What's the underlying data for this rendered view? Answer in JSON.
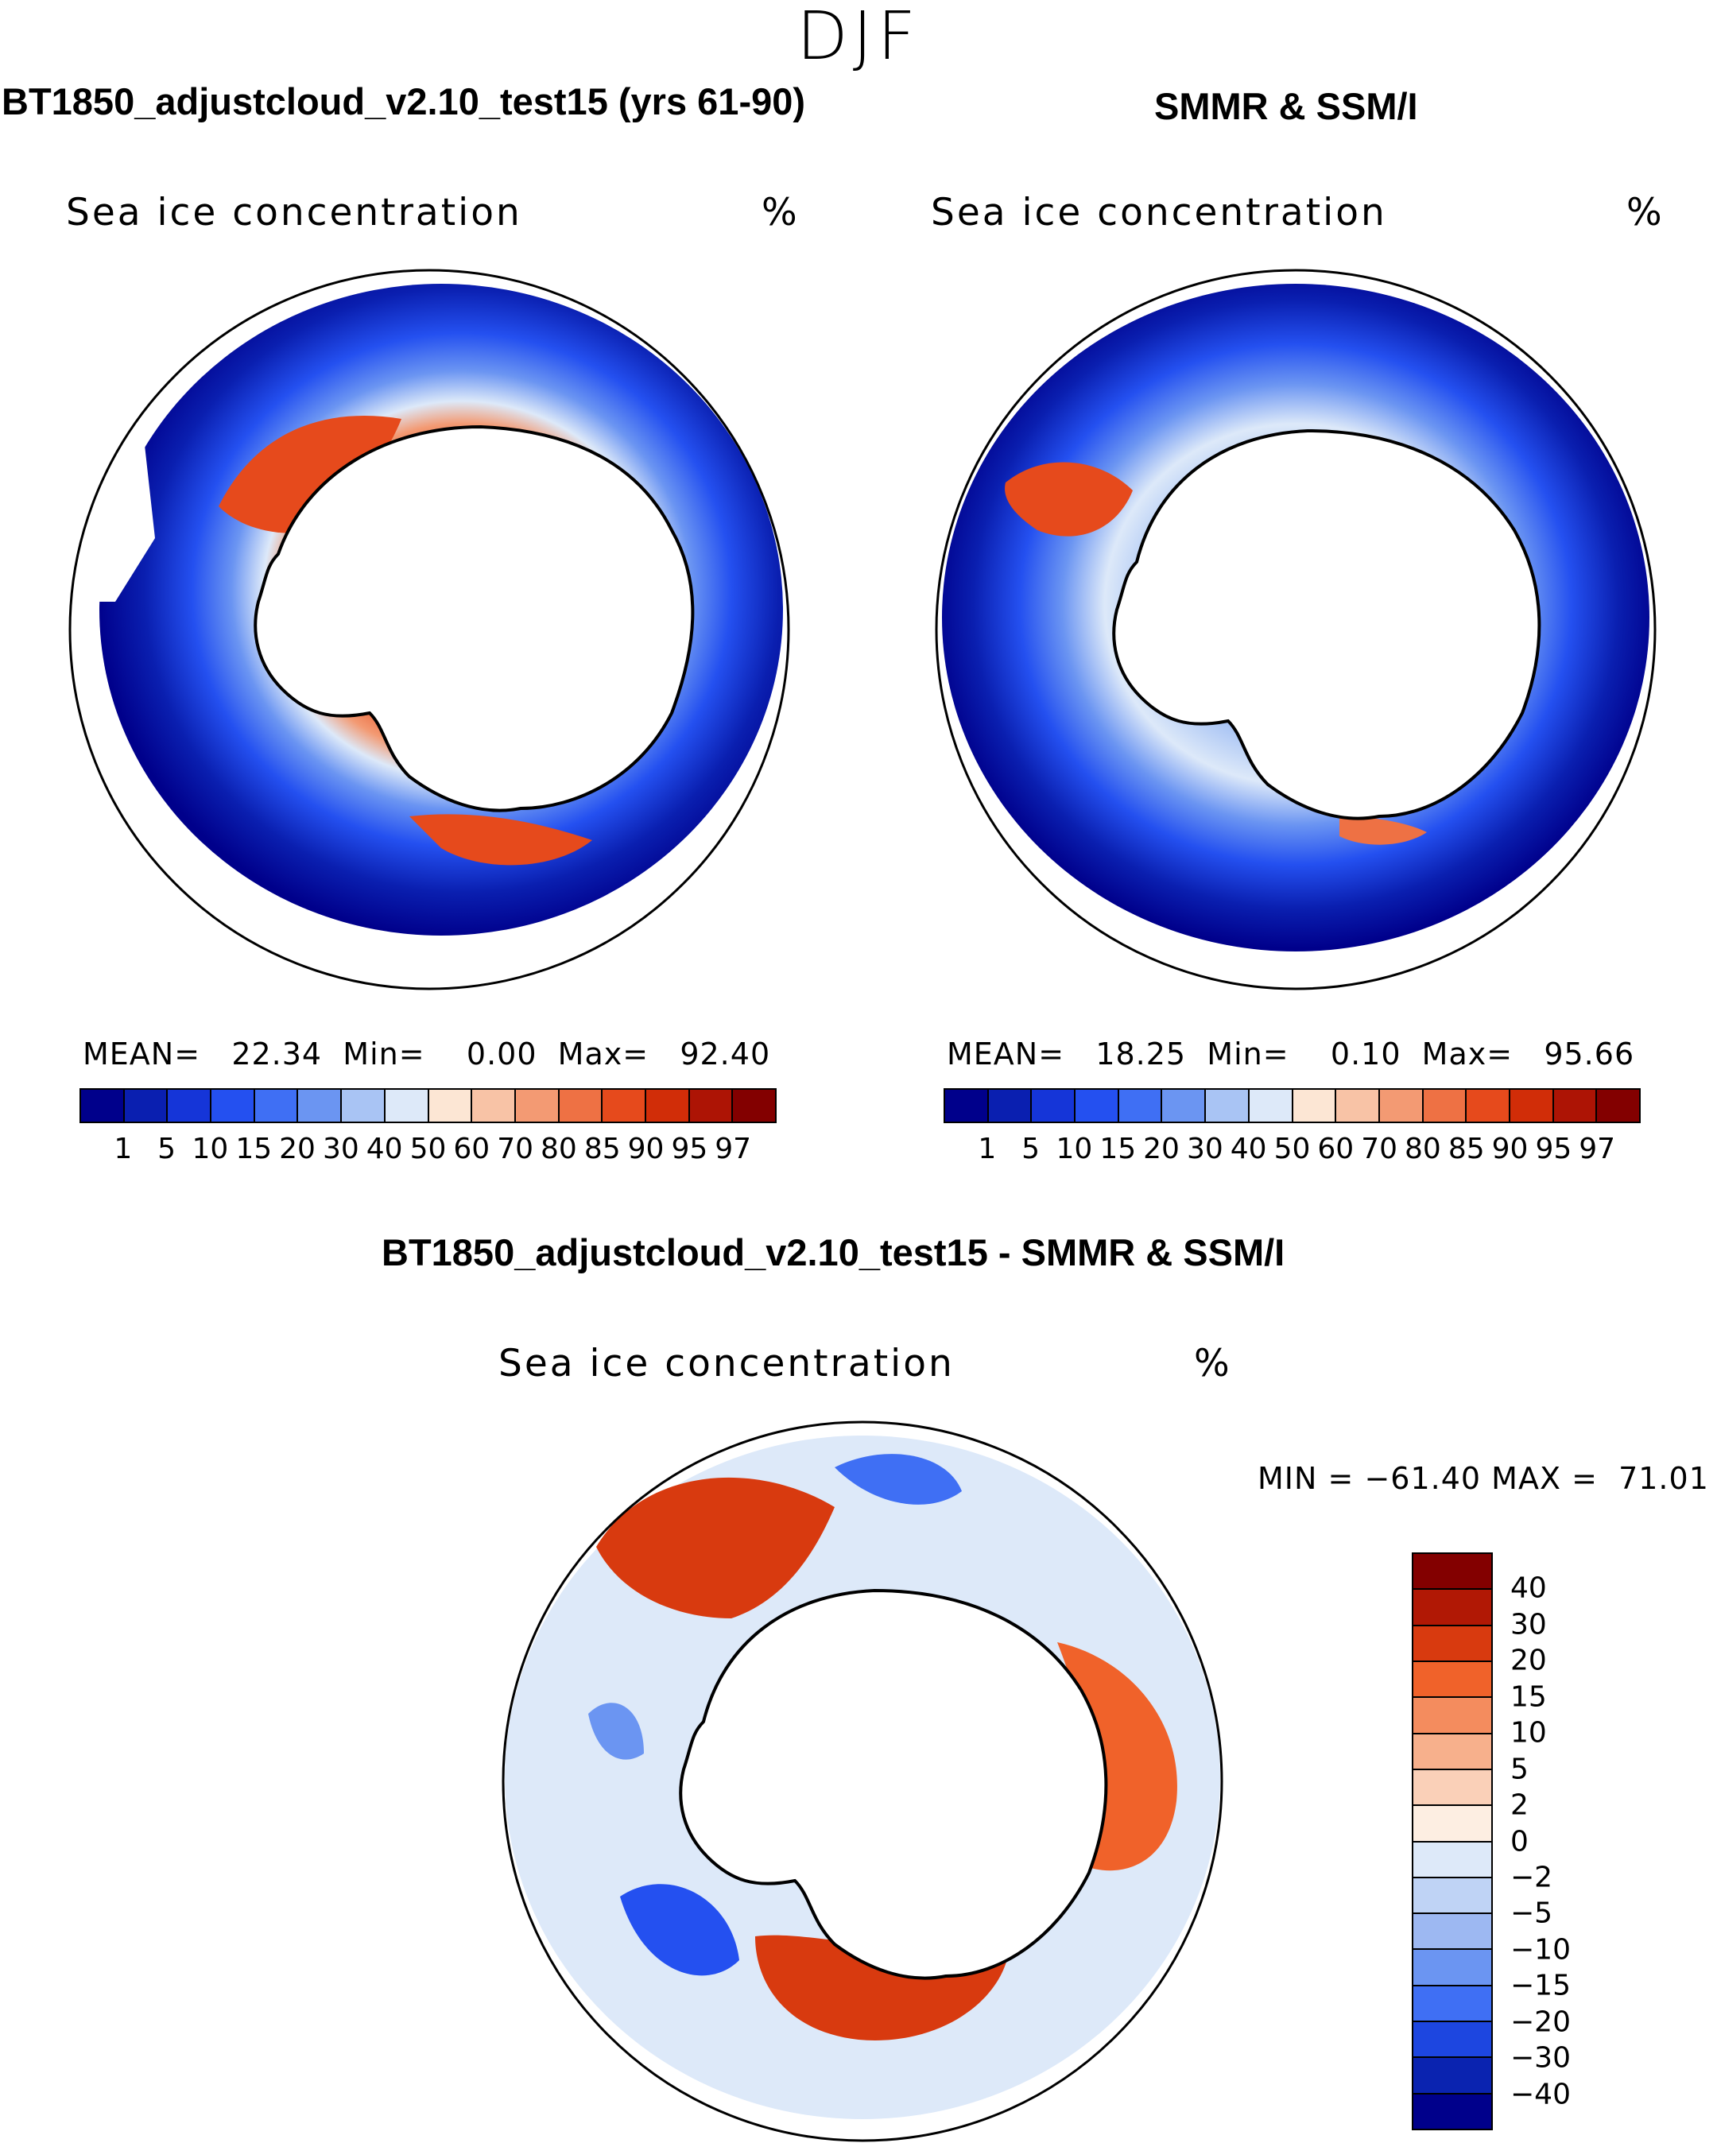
{
  "season": "DJF",
  "panels": {
    "model": {
      "title": "BT1850_adjustcloud_v2.10_test15 (yrs 61-90)",
      "field_label": "Sea ice concentration",
      "unit": "%",
      "mean_label": "MEAN=",
      "mean_value": "22.34",
      "min_label": "Min=",
      "min_value": "0.00",
      "max_label": "Max=",
      "max_value": "92.40"
    },
    "obs": {
      "title": "SMMR & SSM/I",
      "field_label": "Sea ice concentration",
      "unit": "%",
      "mean_label": "MEAN=",
      "mean_value": "18.25",
      "min_label": "Min=",
      "min_value": "0.10",
      "max_label": "Max=",
      "max_value": "95.66"
    },
    "diff": {
      "title": "BT1850_adjustcloud_v2.10_test15 - SMMR & SSM/I",
      "field_label": "Sea ice concentration",
      "unit": "%",
      "min_label": "MIN =",
      "min_value": "−61.40",
      "max_label": "MAX =",
      "max_value": "71.01"
    }
  },
  "concentration_scale": {
    "ticks": [
      "1",
      "5",
      "10",
      "15",
      "20",
      "30",
      "40",
      "50",
      "60",
      "70",
      "80",
      "85",
      "90",
      "95",
      "97"
    ],
    "colors": [
      "#00008b",
      "#0a1fb0",
      "#1535d8",
      "#2450f0",
      "#3f6ff4",
      "#6b95f2",
      "#a9c4f4",
      "#dde9f9",
      "#fce6d4",
      "#f8c3a6",
      "#f39a73",
      "#ee7144",
      "#e64a1c",
      "#d12d08",
      "#ad1405",
      "#830000"
    ]
  },
  "difference_scale": {
    "ticks": [
      "40",
      "30",
      "20",
      "15",
      "10",
      "5",
      "2",
      "0",
      "−2",
      "−5",
      "−10",
      "−15",
      "−20",
      "−30",
      "−40"
    ],
    "colors": [
      "#830000",
      "#b11805",
      "#d83a0f",
      "#f0622a",
      "#f48c5e",
      "#f7b08c",
      "#fad0b8",
      "#fdeee2",
      "#dde9f9",
      "#bfd3f5",
      "#9db8f2",
      "#6b95f2",
      "#3f6ff4",
      "#1d46e0",
      "#0a23b0",
      "#00008b"
    ]
  }
}
